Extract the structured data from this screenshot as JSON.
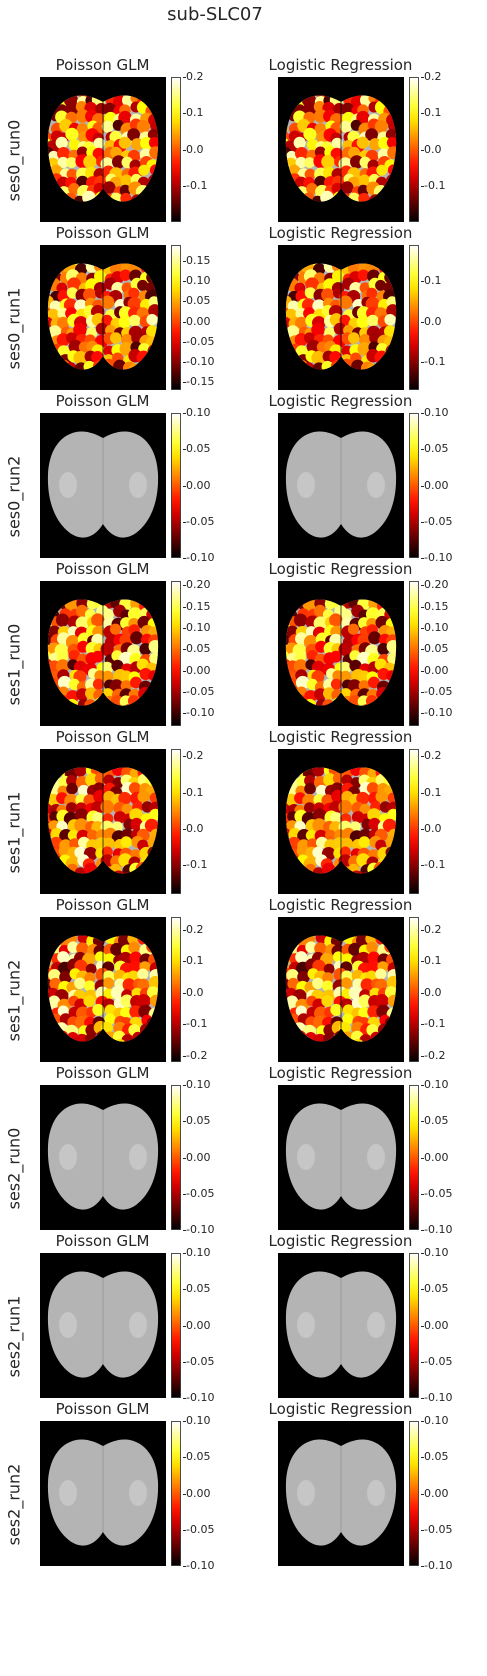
{
  "chart_data": {
    "type": "heatmap",
    "title": "sub-SLC07",
    "columns": [
      "Poisson GLM",
      "Logistic Regression"
    ],
    "colormap": "hot",
    "background_color": "#000000",
    "colors": {
      "low": "#000000",
      "mid_low": "#8b0000",
      "mid": "#ff3300",
      "mid_high": "#ffcc00",
      "high": "#ffffdd"
    },
    "rows": [
      {
        "label": "ses0_run0",
        "has_map": true,
        "panels": [
          {
            "title": "Poisson GLM",
            "vmin": -0.2,
            "vmax": 0.2,
            "ticks": [
              "0.2",
              "0.1",
              "0.0",
              "-0.1"
            ],
            "tick_values": [
              0.2,
              0.1,
              0.0,
              -0.1
            ]
          },
          {
            "title": "Logistic Regression",
            "vmin": -0.2,
            "vmax": 0.2,
            "ticks": [
              "0.2",
              "0.1",
              "0.0",
              "-0.1"
            ],
            "tick_values": [
              0.2,
              0.1,
              0.0,
              -0.1
            ]
          }
        ]
      },
      {
        "label": "ses0_run1",
        "has_map": true,
        "panels": [
          {
            "title": "Poisson GLM",
            "vmin": -0.17,
            "vmax": 0.19,
            "ticks": [
              "0.15",
              "0.10",
              "0.05",
              "0.00",
              "-0.05",
              "-0.10",
              "-0.15"
            ],
            "tick_values": [
              0.15,
              0.1,
              0.05,
              0.0,
              -0.05,
              -0.1,
              -0.15
            ]
          },
          {
            "title": "Logistic Regression",
            "vmin": -0.17,
            "vmax": 0.19,
            "ticks": [
              "0.1",
              "0.0",
              "-0.1"
            ],
            "tick_values": [
              0.1,
              0.0,
              -0.1
            ]
          }
        ]
      },
      {
        "label": "ses0_run2",
        "has_map": false,
        "panels": [
          {
            "title": "Poisson GLM",
            "vmin": -0.1,
            "vmax": 0.1,
            "ticks": [
              "0.10",
              "0.05",
              "0.00",
              "-0.05",
              "-0.10"
            ],
            "tick_values": [
              0.1,
              0.05,
              0.0,
              -0.05,
              -0.1
            ]
          },
          {
            "title": "Logistic Regression",
            "vmin": -0.1,
            "vmax": 0.1,
            "ticks": [
              "0.10",
              "0.05",
              "0.00",
              "-0.05",
              "-0.10"
            ],
            "tick_values": [
              0.1,
              0.05,
              0.0,
              -0.05,
              -0.1
            ]
          }
        ]
      },
      {
        "label": "ses1_run0",
        "has_map": true,
        "panels": [
          {
            "title": "Poisson GLM",
            "vmin": -0.13,
            "vmax": 0.21,
            "ticks": [
              "0.20",
              "0.15",
              "0.10",
              "0.05",
              "0.00",
              "-0.05",
              "-0.10"
            ],
            "tick_values": [
              0.2,
              0.15,
              0.1,
              0.05,
              0.0,
              -0.05,
              -0.1
            ]
          },
          {
            "title": "Logistic Regression",
            "vmin": -0.13,
            "vmax": 0.21,
            "ticks": [
              "0.20",
              "0.15",
              "0.10",
              "0.05",
              "0.00",
              "-0.05",
              "-0.10"
            ],
            "tick_values": [
              0.2,
              0.15,
              0.1,
              0.05,
              0.0,
              -0.05,
              -0.1
            ]
          }
        ]
      },
      {
        "label": "ses1_run1",
        "has_map": true,
        "panels": [
          {
            "title": "Poisson GLM",
            "vmin": -0.18,
            "vmax": 0.22,
            "ticks": [
              "0.2",
              "0.1",
              "0.0",
              "-0.1"
            ],
            "tick_values": [
              0.2,
              0.1,
              0.0,
              -0.1
            ]
          },
          {
            "title": "Logistic Regression",
            "vmin": -0.18,
            "vmax": 0.22,
            "ticks": [
              "0.2",
              "0.1",
              "0.0",
              "-0.1"
            ],
            "tick_values": [
              0.2,
              0.1,
              0.0,
              -0.1
            ]
          }
        ]
      },
      {
        "label": "ses1_run2",
        "has_map": true,
        "panels": [
          {
            "title": "Poisson GLM",
            "vmin": -0.22,
            "vmax": 0.24,
            "ticks": [
              "0.2",
              "0.1",
              "0.0",
              "-0.1",
              "-0.2"
            ],
            "tick_values": [
              0.2,
              0.1,
              0.0,
              -0.1,
              -0.2
            ]
          },
          {
            "title": "Logistic Regression",
            "vmin": -0.22,
            "vmax": 0.24,
            "ticks": [
              "0.2",
              "0.1",
              "0.0",
              "-0.1",
              "-0.2"
            ],
            "tick_values": [
              0.2,
              0.1,
              0.0,
              -0.1,
              -0.2
            ]
          }
        ]
      },
      {
        "label": "ses2_run0",
        "has_map": false,
        "panels": [
          {
            "title": "Poisson GLM",
            "vmin": -0.1,
            "vmax": 0.1,
            "ticks": [
              "0.10",
              "0.05",
              "0.00",
              "-0.05",
              "-0.10"
            ],
            "tick_values": [
              0.1,
              0.05,
              0.0,
              -0.05,
              -0.1
            ]
          },
          {
            "title": "Logistic Regression",
            "vmin": -0.1,
            "vmax": 0.1,
            "ticks": [
              "0.10",
              "0.05",
              "0.00",
              "-0.05",
              "-0.10"
            ],
            "tick_values": [
              0.1,
              0.05,
              0.0,
              -0.05,
              -0.1
            ]
          }
        ]
      },
      {
        "label": "ses2_run1",
        "has_map": false,
        "panels": [
          {
            "title": "Poisson GLM",
            "vmin": -0.1,
            "vmax": 0.1,
            "ticks": [
              "0.10",
              "0.05",
              "0.00",
              "-0.05",
              "-0.10"
            ],
            "tick_values": [
              0.1,
              0.05,
              0.0,
              -0.05,
              -0.1
            ]
          },
          {
            "title": "Logistic Regression",
            "vmin": -0.1,
            "vmax": 0.1,
            "ticks": [
              "0.10",
              "0.05",
              "0.00",
              "-0.05",
              "-0.10"
            ],
            "tick_values": [
              0.1,
              0.05,
              0.0,
              -0.05,
              -0.1
            ]
          }
        ]
      },
      {
        "label": "ses2_run2",
        "has_map": false,
        "panels": [
          {
            "title": "Poisson GLM",
            "vmin": -0.1,
            "vmax": 0.1,
            "ticks": [
              "0.10",
              "0.05",
              "0.00",
              "-0.05",
              "-0.10"
            ],
            "tick_values": [
              0.1,
              0.05,
              0.0,
              -0.05,
              -0.1
            ]
          },
          {
            "title": "Logistic Regression",
            "vmin": -0.1,
            "vmax": 0.1,
            "ticks": [
              "0.10",
              "0.05",
              "0.00",
              "-0.05",
              "-0.10"
            ],
            "tick_values": [
              0.1,
              0.05,
              0.0,
              -0.05,
              -0.1
            ]
          }
        ]
      }
    ]
  }
}
